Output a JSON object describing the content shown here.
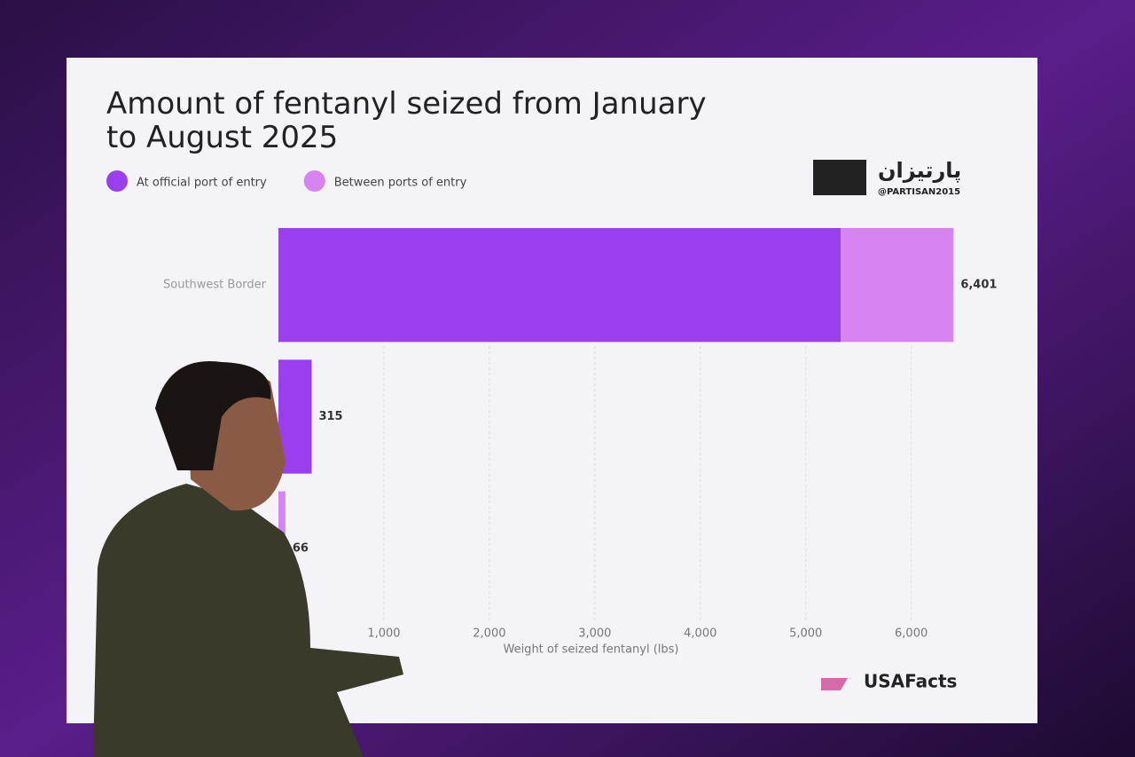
{
  "chart_data": {
    "type": "bar",
    "orientation": "horizontal",
    "stacked": true,
    "title": "Amount of fentanyl seized from January to August 2025",
    "categories": [
      "Southwest Border",
      null,
      null
    ],
    "series": [
      {
        "name": "At official port of entry",
        "color": "#9a3ff0",
        "values": [
          5332,
          315,
          0
        ]
      },
      {
        "name": "Between ports of entry",
        "color": "#d783f2",
        "values": [
          1069,
          0,
          66
        ]
      }
    ],
    "totals": [
      6401,
      315,
      66
    ],
    "total_labels": [
      "6,401",
      "315",
      "66"
    ],
    "xlim": [
      0,
      6600
    ],
    "xticks": [
      {
        "value": 1000,
        "label": "1,000"
      },
      {
        "value": 2000,
        "label": "2,000"
      },
      {
        "value": 3000,
        "label": "3,000"
      },
      {
        "value": 4000,
        "label": "4,000"
      },
      {
        "value": 5000,
        "label": "5,000"
      },
      {
        "value": 6000,
        "label": "6,000"
      }
    ],
    "xlabel": "Weight of seized fentanyl (lbs)",
    "grid": true
  },
  "branding": {
    "watermark": "پارتیزان",
    "handle": "@PARTISAN2015",
    "logo": "USAFacts"
  }
}
